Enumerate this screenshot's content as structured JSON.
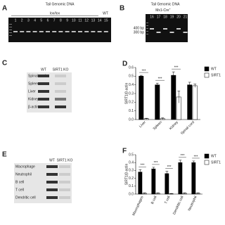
{
  "panels": {
    "A": {
      "label": "A",
      "title": "Tail Genomic DNA",
      "group": "lox/lox",
      "control": "WT",
      "lanes": [
        "1",
        "2",
        "3",
        "4",
        "5",
        "6",
        "7",
        "8",
        "9",
        "10",
        "11",
        "12",
        "13",
        "14",
        "15"
      ]
    },
    "B": {
      "label": "B",
      "title": "Tail Genomic DNA",
      "genotype": "Mx1-Cre",
      "genotype_sup": "+",
      "lanes": [
        "16",
        "17",
        "18",
        "19",
        "20",
        "21"
      ],
      "markers": [
        "400 bp",
        "300 bp"
      ]
    },
    "C": {
      "label": "C",
      "columns": [
        "WT",
        "SIRT1 KO"
      ],
      "rows": [
        "Spinal cord",
        "Spleen",
        "Liver",
        "Kidney",
        "β-actin"
      ]
    },
    "E": {
      "label": "E",
      "columns": [
        "WT",
        "SIRT1 KO"
      ],
      "rows": [
        "Macrophage",
        "Neutrophil",
        "B cell",
        "T cell",
        "Dendritic cell"
      ]
    }
  },
  "chart_data": [
    {
      "type": "bar",
      "panel": "D",
      "y_label": "SIRT1/β-actin",
      "categories": [
        "Liver",
        "Spleen",
        "Kidney",
        "Spinal cord"
      ],
      "series": [
        {
          "name": "WT",
          "color": "#000000",
          "values": [
            0.5,
            0.4,
            0.51,
            0.4
          ],
          "errors": [
            0.01,
            0.02,
            0.04,
            0.03
          ]
        },
        {
          "name": "SIRT1",
          "color": "#ffffff",
          "values": [
            0.01,
            0.01,
            0.26,
            0.39
          ],
          "errors": [
            0.005,
            0.01,
            0.07,
            0.02
          ]
        }
      ],
      "annotations": [
        "***",
        "***",
        "***"
      ],
      "ylim": [
        0,
        0.6
      ],
      "yticks": [
        {
          "value": 0,
          "label": "0.0"
        },
        0.1,
        0.2,
        0.3,
        0.4,
        0.5,
        0.6
      ]
    },
    {
      "type": "bar",
      "panel": "F",
      "y_label": "SIRT1/β-actin",
      "categories": [
        "Macrophages",
        "B cell",
        "T cell",
        "Dendritic cell",
        "Neutrophil"
      ],
      "series": [
        {
          "name": "WT",
          "color": "#000000",
          "values": [
            0.28,
            0.32,
            0.26,
            0.4,
            0.4
          ],
          "errors": [
            0.03,
            0.02,
            0.03,
            0.03,
            0.02
          ]
        },
        {
          "name": "SIRT1",
          "color": "#ffffff",
          "values": [
            0.01,
            0.01,
            0.005,
            0.01,
            0.01
          ],
          "errors": [
            0.005,
            0.005,
            0.003,
            0.005,
            0.005
          ]
        }
      ],
      "annotations": [
        "***",
        "***",
        "***",
        "***",
        "***"
      ],
      "ylim": [
        0,
        0.5
      ],
      "yticks": [
        {
          "value": 0,
          "label": "0.0"
        },
        0.1,
        0.2,
        0.3,
        0.4,
        0.5
      ]
    }
  ]
}
